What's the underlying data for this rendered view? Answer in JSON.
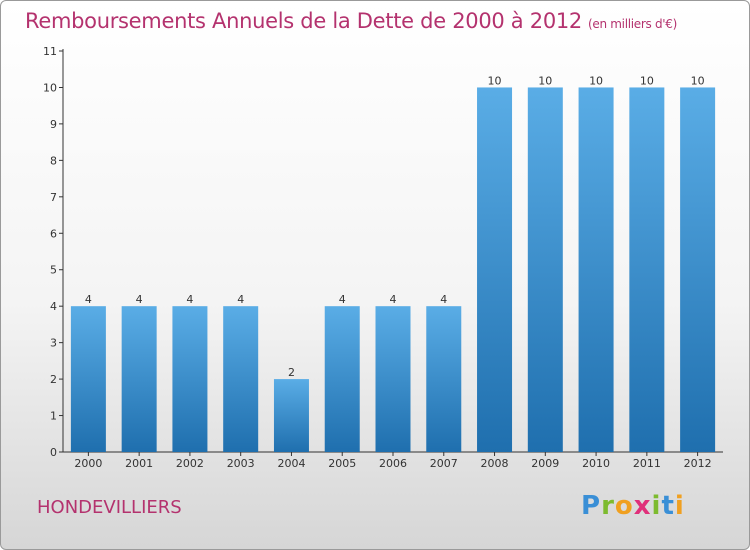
{
  "header": {
    "title": "Remboursements Annuels de la Dette de 2000 à 2012",
    "unit": "(en milliers d'€)"
  },
  "footer": {
    "commune": "HONDEVILLIERS",
    "logo": {
      "letters": [
        "P",
        "r",
        "o",
        "x",
        "i",
        "t",
        "i"
      ],
      "colors": [
        "#3a8fd6",
        "#7dbb2f",
        "#f0a020",
        "#e0307a",
        "#7dbb2f",
        "#3a8fd6",
        "#f0a020"
      ]
    }
  },
  "chart_data": {
    "type": "bar",
    "title": "Remboursements Annuels de la Dette de 2000 à 2012",
    "subtitle": "(en milliers d'€)",
    "categories": [
      "2000",
      "2001",
      "2002",
      "2003",
      "2004",
      "2005",
      "2006",
      "2007",
      "2008",
      "2009",
      "2010",
      "2011",
      "2012"
    ],
    "values": [
      4,
      4,
      4,
      4,
      2,
      4,
      4,
      4,
      10,
      10,
      10,
      10,
      10
    ],
    "data_labels": [
      "4",
      "4",
      "4",
      "4",
      "2",
      "4",
      "4",
      "4",
      "10",
      "10",
      "10",
      "10",
      "10"
    ],
    "yticks": [
      "0",
      "1",
      "2",
      "3",
      "4",
      "5",
      "6",
      "7",
      "8",
      "9",
      "10",
      "11"
    ],
    "ylim": [
      0,
      11
    ],
    "grid": false,
    "colors": {
      "bar_top": "#5aade6",
      "bar_bottom": "#1f6fae",
      "text": "#b4326e",
      "axis": "#333333"
    }
  }
}
